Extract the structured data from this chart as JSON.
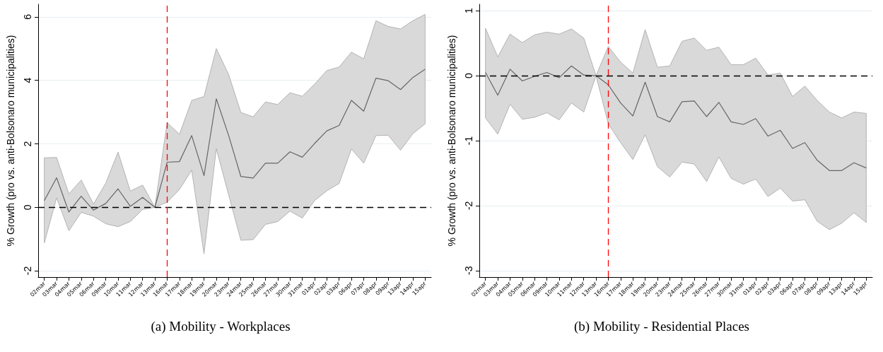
{
  "chart_data": [
    {
      "type": "line",
      "title": "(a) Mobility - Workplaces",
      "ylabel": "% Growth (pro vs. anti-Bolsonaro municipalities)",
      "categories": [
        "02mar",
        "03mar",
        "04mar",
        "05mar",
        "06mar",
        "09mar",
        "10mar",
        "11mar",
        "12mar",
        "13mar",
        "16mar",
        "17mar",
        "18mar",
        "19mar",
        "20mar",
        "23mar",
        "24mar",
        "25mar",
        "26mar",
        "27mar",
        "30mar",
        "31mar",
        "01apr",
        "02apr",
        "03apr",
        "06apr",
        "07apr",
        "08apr",
        "09apr",
        "13apr",
        "14apr",
        "15apr"
      ],
      "series": [
        {
          "color": "#666666",
          "values": [
            0.21,
            0.93,
            -0.15,
            0.35,
            -0.09,
            0.12,
            0.58,
            0.03,
            0.31,
            0,
            1.42,
            1.44,
            2.26,
            1.0,
            3.42,
            2.27,
            0.97,
            0.92,
            1.39,
            1.39,
            1.75,
            1.58,
            2.01,
            2.41,
            2.58,
            3.37,
            3.03,
            4.07,
            3.99,
            3.71,
            4.09,
            4.35
          ],
          "lower": [
            -1.12,
            0.3,
            -0.74,
            -0.16,
            -0.28,
            -0.52,
            -0.61,
            -0.45,
            -0.07,
            0,
            0.16,
            0.56,
            1.17,
            -1.47,
            1.85,
            0.4,
            -1.04,
            -1.02,
            -0.54,
            -0.45,
            -0.12,
            -0.34,
            0.21,
            0.52,
            0.75,
            1.84,
            1.39,
            2.26,
            2.27,
            1.8,
            2.32,
            2.63
          ],
          "upper": [
            1.56,
            1.57,
            0.42,
            0.86,
            0.1,
            0.76,
            1.74,
            0.51,
            0.7,
            0,
            2.67,
            2.3,
            3.37,
            3.49,
            5.0,
            4.19,
            2.99,
            2.85,
            3.32,
            3.24,
            3.61,
            3.5,
            3.88,
            4.31,
            4.42,
            4.89,
            4.68,
            5.88,
            5.7,
            5.62,
            5.88,
            6.08
          ]
        }
      ],
      "ylim": [
        -2.2,
        6.4
      ],
      "yticks": [
        -2,
        0,
        2,
        4,
        6
      ],
      "grid": "y",
      "marker": "none",
      "line_style": "solid",
      "ref_lines": [
        {
          "axis": "y",
          "value": 0,
          "color": "#000000",
          "line_style": "dashed"
        },
        {
          "axis": "x",
          "value": "16mar",
          "color": "#ff0000",
          "line_style": "dashed"
        }
      ]
    },
    {
      "type": "line",
      "title": "(b) Mobility - Residential Places",
      "ylabel": "% Growth (pro vs. anti-Bolsonaro municipalities)",
      "categories": [
        "02mar",
        "03mar",
        "04mar",
        "05mar",
        "06mar",
        "09mar",
        "10mar",
        "11mar",
        "12mar",
        "13mar",
        "16mar",
        "17mar",
        "18mar",
        "19mar",
        "20mar",
        "23mar",
        "24mar",
        "25mar",
        "26mar",
        "27mar",
        "30mar",
        "31mar",
        "01apr",
        "02apr",
        "03apr",
        "06apr",
        "07apr",
        "08apr",
        "09apr",
        "13apr",
        "14apr",
        "15apr"
      ],
      "series": [
        {
          "color": "#666666",
          "values": [
            0.05,
            -0.3,
            0.1,
            -0.08,
            -0.01,
            0.05,
            -0.03,
            0.15,
            0.01,
            0,
            -0.14,
            -0.42,
            -0.62,
            -0.1,
            -0.63,
            -0.71,
            -0.4,
            -0.39,
            -0.63,
            -0.41,
            -0.71,
            -0.75,
            -0.66,
            -0.93,
            -0.84,
            -1.12,
            -1.03,
            -1.3,
            -1.46,
            -1.46,
            -1.34,
            -1.42
          ],
          "lower": [
            -0.65,
            -0.9,
            -0.44,
            -0.67,
            -0.64,
            -0.57,
            -0.68,
            -0.42,
            -0.56,
            0,
            -0.74,
            -1.03,
            -1.29,
            -0.91,
            -1.4,
            -1.56,
            -1.33,
            -1.36,
            -1.63,
            -1.25,
            -1.58,
            -1.67,
            -1.59,
            -1.86,
            -1.73,
            -1.93,
            -1.91,
            -2.24,
            -2.37,
            -2.27,
            -2.11,
            -2.26
          ],
          "upper": [
            0.73,
            0.29,
            0.64,
            0.51,
            0.63,
            0.67,
            0.64,
            0.72,
            0.58,
            0,
            0.45,
            0.21,
            0.04,
            0.71,
            0.13,
            0.15,
            0.53,
            0.58,
            0.39,
            0.44,
            0.17,
            0.17,
            0.27,
            0.01,
            0.04,
            -0.32,
            -0.16,
            -0.38,
            -0.56,
            -0.65,
            -0.56,
            -0.58
          ]
        }
      ],
      "ylim": [
        -3.1,
        1.1
      ],
      "yticks": [
        -3,
        -2,
        -1,
        0,
        1
      ],
      "grid": "y",
      "marker": "none",
      "line_style": "solid",
      "ref_lines": [
        {
          "axis": "y",
          "value": 0,
          "color": "#000000",
          "line_style": "dashed"
        },
        {
          "axis": "x",
          "value": "16mar",
          "color": "#ff0000",
          "line_style": "dashed"
        }
      ]
    }
  ]
}
